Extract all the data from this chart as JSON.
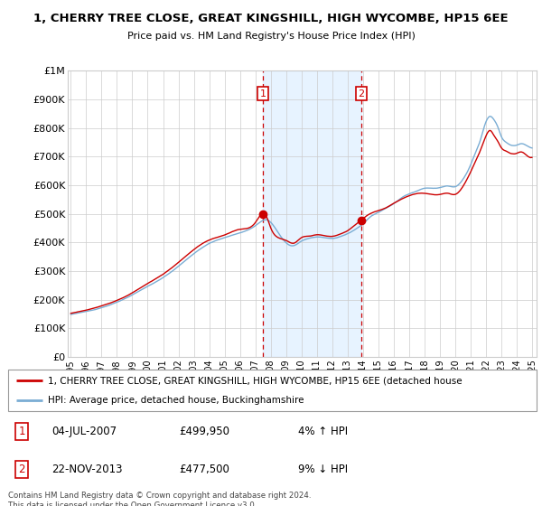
{
  "title": "1, CHERRY TREE CLOSE, GREAT KINGSHILL, HIGH WYCOMBE, HP15 6EE",
  "subtitle": "Price paid vs. HM Land Registry's House Price Index (HPI)",
  "legend_line1": "1, CHERRY TREE CLOSE, GREAT KINGSHILL, HIGH WYCOMBE, HP15 6EE (detached house",
  "legend_line2": "HPI: Average price, detached house, Buckinghamshire",
  "footnote": "Contains HM Land Registry data © Crown copyright and database right 2024.\nThis data is licensed under the Open Government Licence v3.0.",
  "sale1_label": "1",
  "sale1_date": "04-JUL-2007",
  "sale1_price": "£499,950",
  "sale1_hpi": "4% ↑ HPI",
  "sale2_label": "2",
  "sale2_date": "22-NOV-2013",
  "sale2_price": "£477,500",
  "sale2_hpi": "9% ↓ HPI",
  "sale1_year": 2007.5,
  "sale1_value": 499950,
  "sale2_year": 2013.9,
  "sale2_value": 477500,
  "ylim": [
    0,
    1000000
  ],
  "xlim": [
    1994.8,
    2025.3
  ],
  "red_color": "#cc0000",
  "blue_color": "#7aadd4",
  "shade_color": "#ddeeff",
  "background_color": "#ffffff",
  "grid_color": "#cccccc"
}
